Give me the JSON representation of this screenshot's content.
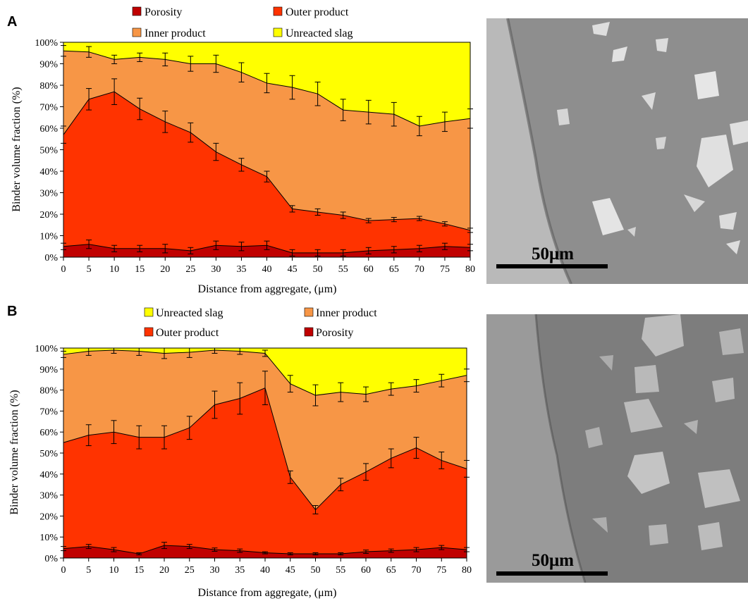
{
  "panels": [
    {
      "letter": "A",
      "legend": [
        "Porosity",
        "Outer product",
        "Inner product",
        "Unreacted slag"
      ],
      "scale_bar": "50μm"
    },
    {
      "letter": "B",
      "legend": [
        "Unreacted slag",
        "Inner product",
        "Outer product",
        "Porosity"
      ],
      "scale_bar": "50μm"
    }
  ],
  "colors": {
    "porosity": "#C00000",
    "outer_product": "#FF3300",
    "inner_product": "#F79646",
    "unreacted_slag": "#FFFF00"
  },
  "chart_data": [
    {
      "type": "area",
      "panel": "A",
      "xlabel": "Distance from aggregate, (μm)",
      "ylabel": "Binder volume fraction (%)",
      "x": [
        0,
        5,
        10,
        15,
        20,
        25,
        30,
        35,
        40,
        45,
        50,
        55,
        60,
        65,
        70,
        75,
        80
      ],
      "xticks": [
        "0",
        "5",
        "10",
        "15",
        "20",
        "25",
        "30",
        "35",
        "40",
        "45",
        "50",
        "55",
        "60",
        "65",
        "70",
        "75",
        "80"
      ],
      "yticks": [
        "0%",
        "10%",
        "20%",
        "30%",
        "40%",
        "50%",
        "60%",
        "70%",
        "80%",
        "90%",
        "100%"
      ],
      "ylim": [
        0,
        100
      ],
      "series": [
        {
          "name": "Porosity",
          "values": [
            5,
            6,
            4,
            4,
            4,
            3,
            5.5,
            5,
            5.5,
            2,
            2,
            2,
            3,
            3.5,
            4,
            5,
            4.5
          ],
          "err": [
            1.5,
            2,
            1.5,
            1.5,
            2,
            1.5,
            2,
            2,
            2,
            1.5,
            1.5,
            1.5,
            1.5,
            1.5,
            1.5,
            1.5,
            1.5
          ]
        },
        {
          "name": "Outer product",
          "values": [
            57,
            73.5,
            77,
            69,
            63,
            58,
            49,
            43,
            37.5,
            22.5,
            21,
            19.5,
            17,
            17.5,
            18,
            15.5,
            12.5
          ],
          "err": [
            4,
            5,
            6,
            5,
            5,
            4.5,
            4,
            3,
            2.5,
            1.5,
            1.5,
            1.5,
            1,
            1,
            1,
            1,
            1
          ]
        },
        {
          "name": "Inner product",
          "values": [
            96,
            95.5,
            92,
            93,
            92,
            90,
            90,
            86,
            81,
            79,
            76,
            68.5,
            67.5,
            66.5,
            61,
            63,
            64.5
          ],
          "err": [
            2.5,
            2.5,
            2,
            2,
            3,
            3.5,
            4,
            4.5,
            4.5,
            5.5,
            5.5,
            5,
            5.5,
            5.5,
            4.5,
            4.5,
            4.5
          ]
        },
        {
          "name": "Unreacted slag",
          "values": [
            100,
            100,
            100,
            100,
            100,
            100,
            100,
            100,
            100,
            100,
            100,
            100,
            100,
            100,
            100,
            100,
            100
          ]
        }
      ]
    },
    {
      "type": "area",
      "panel": "B",
      "xlabel": "Distance from aggregate, (μm)",
      "ylabel": "Binder volume fraction (%)",
      "x": [
        0,
        5,
        10,
        15,
        20,
        25,
        30,
        35,
        40,
        45,
        50,
        55,
        60,
        65,
        70,
        75,
        80
      ],
      "xticks": [
        "0",
        "5",
        "10",
        "15",
        "20",
        "25",
        "30",
        "35",
        "40",
        "45",
        "50",
        "55",
        "60",
        "65",
        "70",
        "75",
        "80"
      ],
      "yticks": [
        "0%",
        "10%",
        "20%",
        "30%",
        "40%",
        "50%",
        "60%",
        "70%",
        "80%",
        "90%",
        "100%"
      ],
      "ylim": [
        0,
        100
      ],
      "series": [
        {
          "name": "Porosity",
          "values": [
            4.5,
            5.5,
            4,
            2,
            6,
            5.5,
            4,
            3.5,
            2.5,
            2,
            2,
            2,
            3,
            3.5,
            4,
            5,
            4
          ],
          "err": [
            1,
            1,
            1,
            0.5,
            1.5,
            1,
            0.8,
            0.8,
            0.5,
            0.5,
            0.5,
            0.5,
            0.8,
            0.8,
            1,
            1,
            1
          ]
        },
        {
          "name": "Outer product",
          "values": [
            55,
            58.5,
            60,
            57.5,
            57.5,
            62,
            73,
            76,
            81,
            38.5,
            23,
            35,
            41,
            47.5,
            52.5,
            46.5,
            42.5
          ],
          "err": [
            0,
            5,
            5.5,
            5.5,
            5.5,
            5.5,
            6.5,
            7.5,
            8,
            3,
            2,
            3,
            4,
            4.5,
            5,
            4,
            4
          ]
        },
        {
          "name": "Inner product",
          "values": [
            97,
            98.5,
            99,
            98.5,
            97.5,
            98,
            99,
            98.5,
            97.5,
            83,
            77.5,
            79,
            78,
            80.5,
            82,
            84.5,
            87
          ],
          "err": [
            1.5,
            2,
            1.5,
            2,
            2.5,
            2.5,
            1.5,
            1.5,
            1.5,
            4,
            5,
            4.5,
            3.5,
            3,
            3,
            3,
            3
          ]
        },
        {
          "name": "Unreacted slag",
          "values": [
            100,
            100,
            100,
            100,
            100,
            100,
            100,
            100,
            100,
            100,
            100,
            100,
            100,
            100,
            100,
            100,
            100
          ]
        }
      ]
    }
  ]
}
